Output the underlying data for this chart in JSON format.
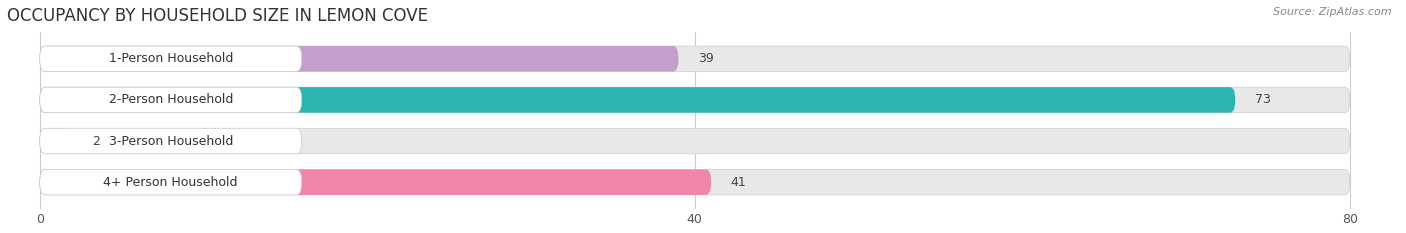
{
  "title": "OCCUPANCY BY HOUSEHOLD SIZE IN LEMON COVE",
  "source": "Source: ZipAtlas.com",
  "categories": [
    "1-Person Household",
    "2-Person Household",
    "3-Person Household",
    "4+ Person Household"
  ],
  "values": [
    39,
    73,
    2,
    41
  ],
  "bar_colors": [
    "#c3a0cc",
    "#2ab5b0",
    "#b8bce8",
    "#f087a8"
  ],
  "xlim": [
    -2,
    83
  ],
  "xmin": 0,
  "xmax": 80,
  "xticks": [
    0,
    40,
    80
  ],
  "background_color": "#ffffff",
  "bar_bg_color": "#e8e8e8",
  "title_fontsize": 12,
  "source_fontsize": 8,
  "label_fontsize": 9,
  "value_fontsize": 9
}
